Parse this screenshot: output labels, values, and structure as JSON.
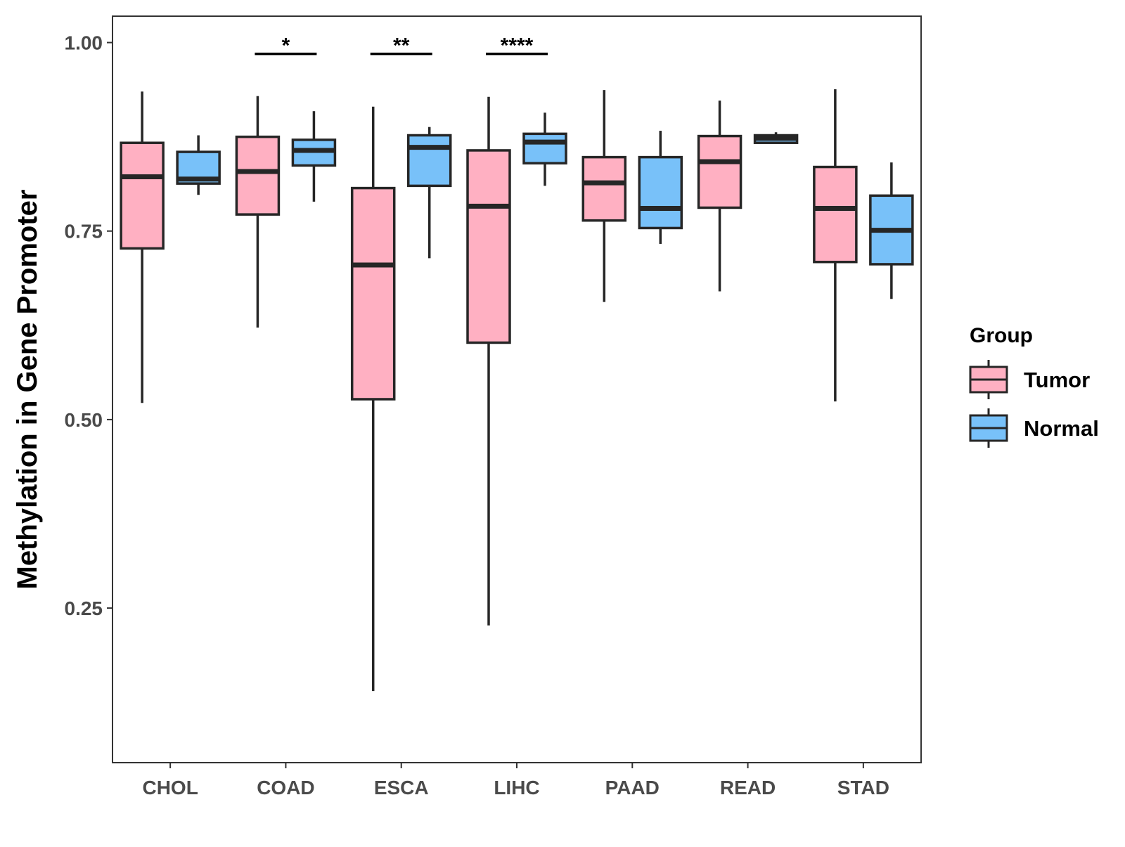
{
  "chart_data": {
    "type": "boxplot",
    "title": "",
    "xlabel": "",
    "ylabel": "Methylation in Gene Promoter",
    "ylim": [
      0.045,
      1.035
    ],
    "y_ticks": [
      "0.25",
      "0.50",
      "0.75",
      "1.00"
    ],
    "categories": [
      "CHOL",
      "COAD",
      "ESCA",
      "LIHC",
      "PAAD",
      "READ",
      "STAD"
    ],
    "legend": {
      "title": "Group",
      "position": "right",
      "items": [
        {
          "name": "Tumor",
          "color": "#FFB0C2"
        },
        {
          "name": "Normal",
          "color": "#78C1F9"
        }
      ]
    },
    "series": [
      {
        "name": "Tumor",
        "color": "#FFB0C2",
        "boxes": [
          {
            "category": "CHOL",
            "min": 0.522,
            "q1": 0.727,
            "median": 0.822,
            "q3": 0.867,
            "max": 0.935
          },
          {
            "category": "COAD",
            "min": 0.622,
            "q1": 0.772,
            "median": 0.829,
            "q3": 0.875,
            "max": 0.929
          },
          {
            "category": "ESCA",
            "min": 0.14,
            "q1": 0.527,
            "median": 0.705,
            "q3": 0.807,
            "max": 0.915
          },
          {
            "category": "LIHC",
            "min": 0.227,
            "q1": 0.602,
            "median": 0.783,
            "q3": 0.857,
            "max": 0.928
          },
          {
            "category": "PAAD",
            "min": 0.656,
            "q1": 0.764,
            "median": 0.814,
            "q3": 0.848,
            "max": 0.937
          },
          {
            "category": "READ",
            "min": 0.67,
            "q1": 0.781,
            "median": 0.842,
            "q3": 0.876,
            "max": 0.923
          },
          {
            "category": "STAD",
            "min": 0.524,
            "q1": 0.709,
            "median": 0.78,
            "q3": 0.835,
            "max": 0.938
          }
        ]
      },
      {
        "name": "Normal",
        "color": "#78C1F9",
        "boxes": [
          {
            "category": "CHOL",
            "min": 0.798,
            "q1": 0.813,
            "median": 0.819,
            "q3": 0.855,
            "max": 0.877
          },
          {
            "category": "COAD",
            "min": 0.789,
            "q1": 0.837,
            "median": 0.857,
            "q3": 0.871,
            "max": 0.909
          },
          {
            "category": "ESCA",
            "min": 0.714,
            "q1": 0.81,
            "median": 0.861,
            "q3": 0.877,
            "max": 0.888
          },
          {
            "category": "LIHC",
            "min": 0.81,
            "q1": 0.84,
            "median": 0.868,
            "q3": 0.879,
            "max": 0.907
          },
          {
            "category": "PAAD",
            "min": 0.733,
            "q1": 0.754,
            "median": 0.78,
            "q3": 0.848,
            "max": 0.883
          },
          {
            "category": "READ",
            "min": 0.866,
            "q1": 0.867,
            "median": 0.873,
            "q3": 0.877,
            "max": 0.881
          },
          {
            "category": "STAD",
            "min": 0.66,
            "q1": 0.706,
            "median": 0.751,
            "q3": 0.797,
            "max": 0.841
          }
        ]
      }
    ],
    "significance": [
      {
        "category": "COAD",
        "label": "*",
        "y": 0.985
      },
      {
        "category": "ESCA",
        "label": "**",
        "y": 0.985
      },
      {
        "category": "LIHC",
        "label": "****",
        "y": 0.985
      }
    ]
  }
}
